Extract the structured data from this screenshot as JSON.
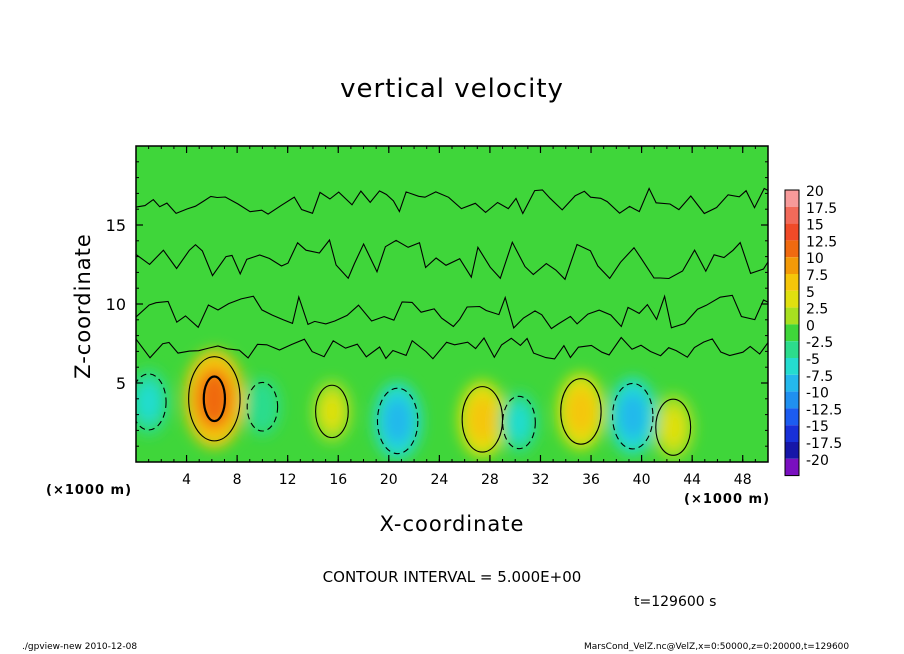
{
  "chart_data": {
    "type": "heatmap",
    "title": "vertical velocity",
    "xlabel": "X-coordinate",
    "ylabel": "Z-coordinate",
    "x_unit_label": "(×1000 m)",
    "x_unit_label_right": "(×1000 m)",
    "xlim": [
      0,
      50
    ],
    "ylim": [
      0,
      20
    ],
    "x_ticks": [
      "4",
      "8",
      "12",
      "16",
      "20",
      "24",
      "28",
      "32",
      "36",
      "40",
      "44",
      "48"
    ],
    "y_ticks": [
      "5",
      "10",
      "15"
    ],
    "colorbar_labels": [
      "20",
      "17.5",
      "15",
      "12.5",
      "10",
      "7.5",
      "5",
      "2.5",
      "0",
      "-2.5",
      "-5",
      "-7.5",
      "-10",
      "-12.5",
      "-15",
      "-17.5",
      "-20"
    ],
    "colorbar_colors": [
      "#f79a9a",
      "#f26a5a",
      "#f04a28",
      "#f06a10",
      "#f39a08",
      "#f5c60a",
      "#e0e010",
      "#a8e020",
      "#3fd63a",
      "#2cdc8c",
      "#24dcd0",
      "#24b8ec",
      "#2090f0",
      "#1c5cf0",
      "#1830d8",
      "#1616a8",
      "#7a10c0"
    ],
    "contour_interval": "CONTOUR INTERVAL = 5.000E+00",
    "features": [
      {
        "x": 6.2,
        "z": 4.0,
        "value": 12.5
      },
      {
        "x": 27.4,
        "z": 2.7,
        "value": 7.5
      },
      {
        "x": 35.2,
        "z": 3.2,
        "value": 7.5
      },
      {
        "x": 42.5,
        "z": 2.2,
        "value": 5
      },
      {
        "x": 15.5,
        "z": 3.2,
        "value": 4
      },
      {
        "x": 1.0,
        "z": 3.8,
        "value": -5
      },
      {
        "x": 20.7,
        "z": 2.6,
        "value": -7.5
      },
      {
        "x": 39.3,
        "z": 2.9,
        "value": -7.5
      },
      {
        "x": 30.3,
        "z": 2.5,
        "value": -4
      },
      {
        "x": 10.0,
        "z": 3.5,
        "value": -3
      }
    ]
  },
  "annotations": {
    "time": "t=129600 s",
    "footer_left": "./gpview-new  2010-12-08",
    "footer_right": "MarsCond_VelZ.nc@VelZ,x=0:50000,z=0:20000,t=129600"
  }
}
